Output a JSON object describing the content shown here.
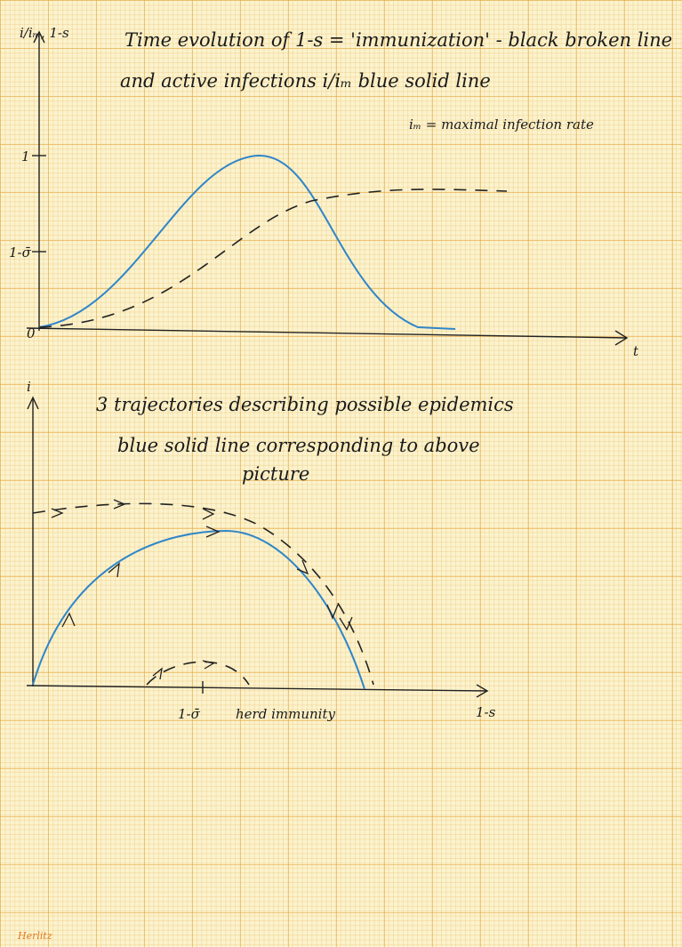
{
  "top_chart": {
    "title_lines": [
      "Time evolution of 1-s = 'immunization' - black broken line",
      "and active infections i/iₘ blue solid line"
    ],
    "note": "iₘ = maximal infection rate",
    "y_label": "i/iₘ, 1-s",
    "y_ticks": [
      "1",
      "1-σ̄"
    ],
    "origin": "0",
    "x_label": "t"
  },
  "bottom_chart": {
    "y_label": "i",
    "title_lines": [
      "3 trajectories describing possible epidemics",
      "blue solid line corresponding to above",
      "picture"
    ],
    "x_tick": "1-σ̄",
    "x_tick_note": "herd immunity",
    "x_label": "1-s"
  },
  "footer": "Herlitz"
}
